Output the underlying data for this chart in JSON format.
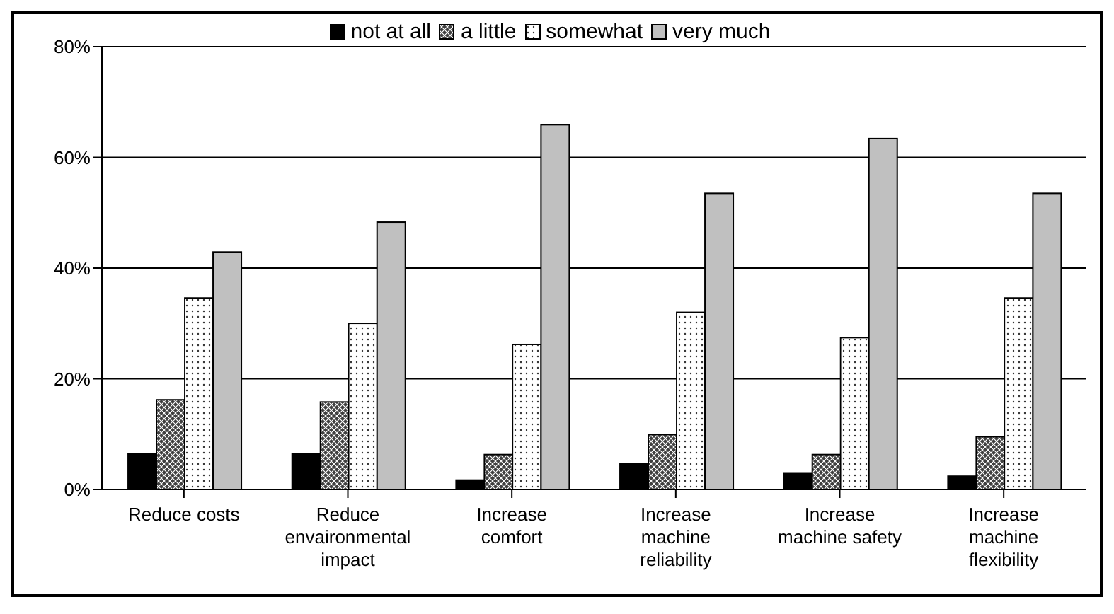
{
  "chart_data": {
    "type": "bar",
    "categories": [
      "Reduce costs",
      "Reduce envaironmental impact",
      "Increase comfort",
      "Increase machine reliability",
      "Increase machine safety",
      "Increase machine flexibility"
    ],
    "series": [
      {
        "name": "not at all",
        "color": "#000000",
        "values": [
          6.4,
          6.4,
          1.7,
          4.6,
          3.0,
          2.4
        ]
      },
      {
        "name": "a little",
        "color": "#404040",
        "values": [
          16.2,
          15.8,
          6.3,
          9.9,
          6.3,
          9.5
        ]
      },
      {
        "name": "somewhat",
        "color": "#ffffff",
        "values": [
          34.6,
          30.0,
          26.2,
          32.0,
          27.4,
          34.6
        ]
      },
      {
        "name": "very much",
        "color": "#c0c0c0",
        "values": [
          42.9,
          48.3,
          65.9,
          53.5,
          63.4,
          53.5
        ]
      }
    ],
    "ylim": [
      0,
      80
    ],
    "yticks": [
      {
        "value": 0,
        "label": "0%"
      },
      {
        "value": 20,
        "label": "20%"
      },
      {
        "value": 40,
        "label": "40%"
      },
      {
        "value": 60,
        "label": "60%"
      },
      {
        "value": 80,
        "label": "80%"
      }
    ],
    "grid": "y",
    "legend": "top"
  }
}
